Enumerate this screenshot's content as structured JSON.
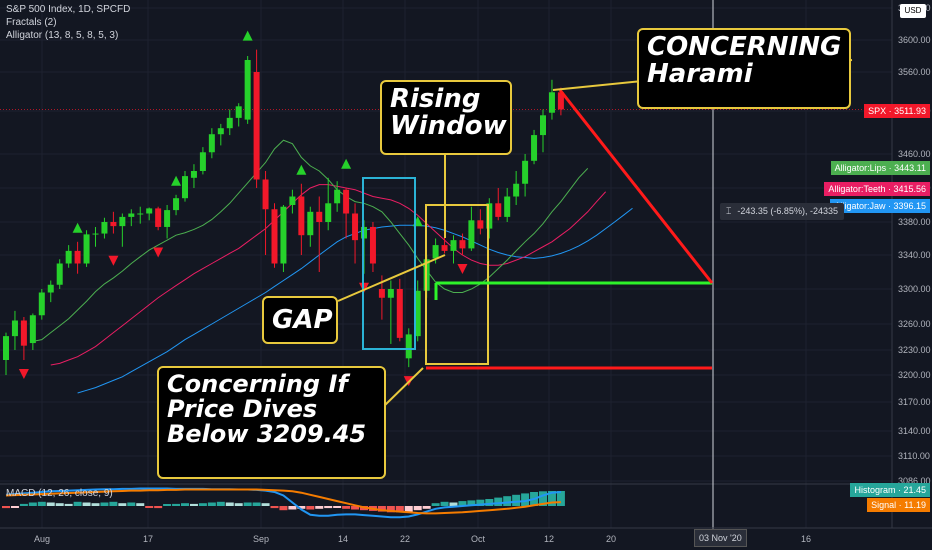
{
  "header": {
    "symbol": "S&P 500 Index, 1D, SPCFD",
    "fractals": "Fractals (2)",
    "alligator": "Alligator (13, 8, 5, 8, 5, 3)",
    "currency": "USD"
  },
  "macd_label": "MACD (12, 26, close, 9)",
  "price_tags": {
    "spx": "SPX · 3511.93",
    "lips": "Alligator:Lips · 3443.11",
    "teeth": "Alligator:Teeth · 3415.56",
    "jaw": "Alligator:Jaw · 3396.15",
    "histogram": "Histogram · 21.45",
    "signal": "Signal · 11.19"
  },
  "date_tag": "03 Nov '20",
  "measure_text": "-243.35 (-6.85%), -24335",
  "annotations": {
    "harami": "CONCERNING\nHarami",
    "window": "Rising\nWindow",
    "gap": "GAP",
    "dive": "Concerning If\nPrice Dives\nBelow 3209.45"
  },
  "colors": {
    "background": "#131722",
    "up": "#26d12b",
    "down": "#f2182a",
    "lips": "#4caf50",
    "teeth": "#e91e63",
    "jaw": "#2196f3",
    "annotation_border": "#e8c93d",
    "highlight_box": "#2bb3d6",
    "support_line": "#2ef32a",
    "resistance_line": "#ff1a1a"
  },
  "chart_data": {
    "type": "candlestick",
    "title": "S&P 500 Index, 1D, SPCFD",
    "y_axis_ticks": [
      3086.0,
      3110.0,
      3140.0,
      3170.0,
      3200.0,
      3230.0,
      3260.0,
      3300.0,
      3340.0,
      3380.0,
      3420.0,
      3460.0,
      3510.0,
      3560.0,
      3600.0,
      3650.0
    ],
    "y_axis_labels": [
      "3086.00",
      "3110.00",
      "3140.00",
      "3170.00",
      "3200.00",
      "3230.00",
      "3260.00",
      "3300.00",
      "3340.00",
      "3380.00",
      "3420.00",
      "3460.00",
      "3510.00",
      "3560.00",
      "3600.00",
      "3650.00"
    ],
    "ylim": [
      3070,
      3665
    ],
    "x_axis_labels": [
      "Aug",
      "17",
      "Sep",
      "14",
      "22",
      "Oct",
      "12",
      "20",
      "16"
    ],
    "candles": [
      {
        "o": 3218,
        "h": 3250,
        "l": 3200,
        "c": 3246
      },
      {
        "o": 3246,
        "h": 3275,
        "l": 3230,
        "c": 3264
      },
      {
        "o": 3264,
        "h": 3268,
        "l": 3218,
        "c": 3235
      },
      {
        "o": 3238,
        "h": 3272,
        "l": 3230,
        "c": 3270
      },
      {
        "o": 3270,
        "h": 3300,
        "l": 3265,
        "c": 3296
      },
      {
        "o": 3296,
        "h": 3310,
        "l": 3285,
        "c": 3305
      },
      {
        "o": 3305,
        "h": 3335,
        "l": 3300,
        "c": 3330
      },
      {
        "o": 3330,
        "h": 3352,
        "l": 3325,
        "c": 3345
      },
      {
        "o": 3345,
        "h": 3356,
        "l": 3318,
        "c": 3330
      },
      {
        "o": 3330,
        "h": 3370,
        "l": 3326,
        "c": 3365
      },
      {
        "o": 3365,
        "h": 3374,
        "l": 3350,
        "c": 3366
      },
      {
        "o": 3366,
        "h": 3385,
        "l": 3360,
        "c": 3380
      },
      {
        "o": 3380,
        "h": 3392,
        "l": 3366,
        "c": 3375
      },
      {
        "o": 3375,
        "h": 3390,
        "l": 3350,
        "c": 3386
      },
      {
        "o": 3386,
        "h": 3395,
        "l": 3375,
        "c": 3390
      },
      {
        "o": 3390,
        "h": 3398,
        "l": 3378,
        "c": 3390
      },
      {
        "o": 3390,
        "h": 3397,
        "l": 3382,
        "c": 3396
      },
      {
        "o": 3396,
        "h": 3398,
        "l": 3370,
        "c": 3374
      },
      {
        "o": 3374,
        "h": 3400,
        "l": 3360,
        "c": 3394
      },
      {
        "o": 3394,
        "h": 3412,
        "l": 3388,
        "c": 3408
      },
      {
        "o": 3408,
        "h": 3440,
        "l": 3404,
        "c": 3434
      },
      {
        "o": 3432,
        "h": 3448,
        "l": 3420,
        "c": 3440
      },
      {
        "o": 3440,
        "h": 3468,
        "l": 3436,
        "c": 3462
      },
      {
        "o": 3462,
        "h": 3490,
        "l": 3455,
        "c": 3483
      },
      {
        "o": 3483,
        "h": 3495,
        "l": 3470,
        "c": 3490
      },
      {
        "o": 3490,
        "h": 3512,
        "l": 3482,
        "c": 3502
      },
      {
        "o": 3502,
        "h": 3520,
        "l": 3492,
        "c": 3516
      },
      {
        "o": 3500,
        "h": 3580,
        "l": 3495,
        "c": 3575
      },
      {
        "o": 3560,
        "h": 3588,
        "l": 3420,
        "c": 3430
      },
      {
        "o": 3430,
        "h": 3440,
        "l": 3340,
        "c": 3395
      },
      {
        "o": 3395,
        "h": 3402,
        "l": 3325,
        "c": 3330
      },
      {
        "o": 3330,
        "h": 3400,
        "l": 3320,
        "c": 3398
      },
      {
        "o": 3400,
        "h": 3418,
        "l": 3390,
        "c": 3410
      },
      {
        "o": 3410,
        "h": 3425,
        "l": 3340,
        "c": 3364
      },
      {
        "o": 3364,
        "h": 3398,
        "l": 3350,
        "c": 3392
      },
      {
        "o": 3392,
        "h": 3410,
        "l": 3320,
        "c": 3380
      },
      {
        "o": 3380,
        "h": 3432,
        "l": 3370,
        "c": 3402
      },
      {
        "o": 3402,
        "h": 3428,
        "l": 3392,
        "c": 3418
      },
      {
        "o": 3418,
        "h": 3420,
        "l": 3360,
        "c": 3390
      },
      {
        "o": 3390,
        "h": 3402,
        "l": 3330,
        "c": 3358
      },
      {
        "o": 3360,
        "h": 3382,
        "l": 3318,
        "c": 3374
      },
      {
        "o": 3374,
        "h": 3380,
        "l": 3320,
        "c": 3330
      },
      {
        "o": 3300,
        "h": 3316,
        "l": 3265,
        "c": 3290
      },
      {
        "o": 3290,
        "h": 3310,
        "l": 3237,
        "c": 3300
      },
      {
        "o": 3300,
        "h": 3312,
        "l": 3240,
        "c": 3244
      },
      {
        "o": 3220,
        "h": 3255,
        "l": 3209.45,
        "c": 3248
      },
      {
        "o": 3246,
        "h": 3310,
        "l": 3240,
        "c": 3298
      },
      {
        "o": 3298,
        "h": 3340,
        "l": 3290,
        "c": 3335
      },
      {
        "o": 3336,
        "h": 3360,
        "l": 3330,
        "c": 3352
      },
      {
        "o": 3352,
        "h": 3364,
        "l": 3342,
        "c": 3345
      },
      {
        "o": 3345,
        "h": 3364,
        "l": 3330,
        "c": 3358
      },
      {
        "o": 3358,
        "h": 3366,
        "l": 3340,
        "c": 3348
      },
      {
        "o": 3348,
        "h": 3398,
        "l": 3345,
        "c": 3382
      },
      {
        "o": 3382,
        "h": 3395,
        "l": 3365,
        "c": 3372
      },
      {
        "o": 3372,
        "h": 3408,
        "l": 3360,
        "c": 3402
      },
      {
        "o": 3402,
        "h": 3420,
        "l": 3382,
        "c": 3386
      },
      {
        "o": 3386,
        "h": 3420,
        "l": 3380,
        "c": 3410
      },
      {
        "o": 3410,
        "h": 3440,
        "l": 3400,
        "c": 3425
      },
      {
        "o": 3425,
        "h": 3460,
        "l": 3410,
        "c": 3452
      },
      {
        "o": 3452,
        "h": 3488,
        "l": 3448,
        "c": 3482
      },
      {
        "o": 3482,
        "h": 3512,
        "l": 3462,
        "c": 3505
      },
      {
        "o": 3508,
        "h": 3550,
        "l": 3500,
        "c": 3534
      },
      {
        "o": 3534,
        "h": 3540,
        "l": 3505,
        "c": 3512
      }
    ],
    "lips": [
      3240,
      3242,
      3250,
      3258,
      3266,
      3276,
      3286,
      3297,
      3306,
      3313,
      3321,
      3330,
      3338,
      3346,
      3352,
      3358,
      3364,
      3367,
      3371,
      3376,
      3383,
      3392,
      3402,
      3414,
      3426,
      3438,
      3450,
      3466,
      3476,
      3472,
      3456,
      3446,
      3440,
      3430,
      3418,
      3410,
      3404,
      3402,
      3398,
      3392,
      3380,
      3366,
      3352,
      3336,
      3322,
      3308,
      3300,
      3296,
      3296,
      3300,
      3306,
      3314,
      3324,
      3334,
      3345,
      3356,
      3366,
      3378,
      3392,
      3404,
      3418,
      3432,
      3443.11
    ],
    "teeth": [
      3212,
      3214,
      3218,
      3222,
      3228,
      3234,
      3242,
      3250,
      3258,
      3266,
      3274,
      3282,
      3290,
      3297,
      3304,
      3311,
      3318,
      3324,
      3330,
      3336,
      3342,
      3348,
      3356,
      3364,
      3372,
      3382,
      3392,
      3402,
      3412,
      3420,
      3424,
      3424,
      3422,
      3420,
      3418,
      3414,
      3410,
      3408,
      3406,
      3402,
      3396,
      3388,
      3378,
      3368,
      3358,
      3348,
      3340,
      3334,
      3330,
      3328,
      3328,
      3330,
      3334,
      3338,
      3344,
      3350,
      3356,
      3364,
      3372,
      3382,
      3392,
      3404,
      3415.56
    ],
    "jaw": [
      3180,
      3183,
      3186,
      3190,
      3194,
      3198,
      3204,
      3210,
      3216,
      3222,
      3228,
      3235,
      3242,
      3248,
      3254,
      3260,
      3266,
      3272,
      3278,
      3284,
      3290,
      3296,
      3303,
      3310,
      3317,
      3324,
      3332,
      3340,
      3348,
      3356,
      3362,
      3366,
      3370,
      3372,
      3374,
      3375,
      3376,
      3376,
      3376,
      3375,
      3373,
      3370,
      3366,
      3362,
      3357,
      3352,
      3347,
      3343,
      3340,
      3338,
      3337,
      3336,
      3337,
      3339,
      3342,
      3346,
      3351,
      3357,
      3364,
      3372,
      3380,
      3388,
      3396.15
    ],
    "fractals_up": [
      {
        "i": 8,
        "v": 3356
      },
      {
        "i": 19,
        "v": 3412
      },
      {
        "i": 27,
        "v": 3588
      },
      {
        "i": 33,
        "v": 3425
      },
      {
        "i": 38,
        "v": 3432
      },
      {
        "i": 46,
        "v": 3364
      }
    ],
    "fractals_down": [
      {
        "i": 2,
        "v": 3218
      },
      {
        "i": 12,
        "v": 3350
      },
      {
        "i": 17,
        "v": 3360
      },
      {
        "i": 40,
        "v": 3318
      },
      {
        "i": 45,
        "v": 3209.45
      },
      {
        "i": 51,
        "v": 3340
      }
    ],
    "macd_histogram": [
      -3,
      -2,
      3,
      5,
      6,
      5,
      4,
      3,
      6,
      5,
      4,
      5,
      6,
      4,
      5,
      4,
      -1,
      -3,
      2,
      3,
      4,
      3,
      4,
      5,
      6,
      5,
      4,
      5,
      5,
      4,
      -3,
      -6,
      -5,
      -4,
      -5,
      -4,
      -3,
      -2,
      -4,
      -5,
      -6,
      -7,
      -8,
      -9,
      -9,
      -8,
      -6,
      -4,
      4,
      6,
      5,
      7,
      8,
      9,
      10,
      12,
      14,
      16,
      18,
      20,
      21,
      21.45,
      21.45
    ],
    "macd_line": [
      32,
      34,
      36,
      38,
      40,
      42,
      43,
      44,
      45,
      46,
      47,
      48,
      48,
      49,
      49,
      50,
      50,
      50,
      50,
      49,
      49,
      49,
      49,
      48,
      48,
      48,
      47,
      47,
      46,
      44,
      40,
      30,
      10,
      -10,
      -25,
      -28,
      -28,
      -25,
      -24,
      -24,
      -26,
      -28,
      -30,
      -32,
      -32,
      -30,
      -24,
      -16,
      -8,
      -4,
      -2,
      0,
      2,
      4,
      6,
      8,
      10,
      12,
      14,
      20,
      30,
      38,
      40
    ],
    "signal_line": [
      30,
      31,
      32,
      33,
      34,
      35,
      36,
      37,
      38,
      39,
      40,
      41,
      42,
      43,
      44,
      44,
      45,
      45,
      46,
      46,
      47,
      47,
      47,
      47,
      47,
      47,
      47,
      47,
      47,
      46,
      45,
      44,
      42,
      38,
      32,
      26,
      20,
      14,
      8,
      2,
      -4,
      -8,
      -12,
      -14,
      -16,
      -18,
      -20,
      -21,
      -21,
      -20,
      -19,
      -18,
      -16,
      -14,
      -12,
      -10,
      -8,
      -5,
      -2,
      2,
      6,
      10,
      11.19
    ]
  }
}
